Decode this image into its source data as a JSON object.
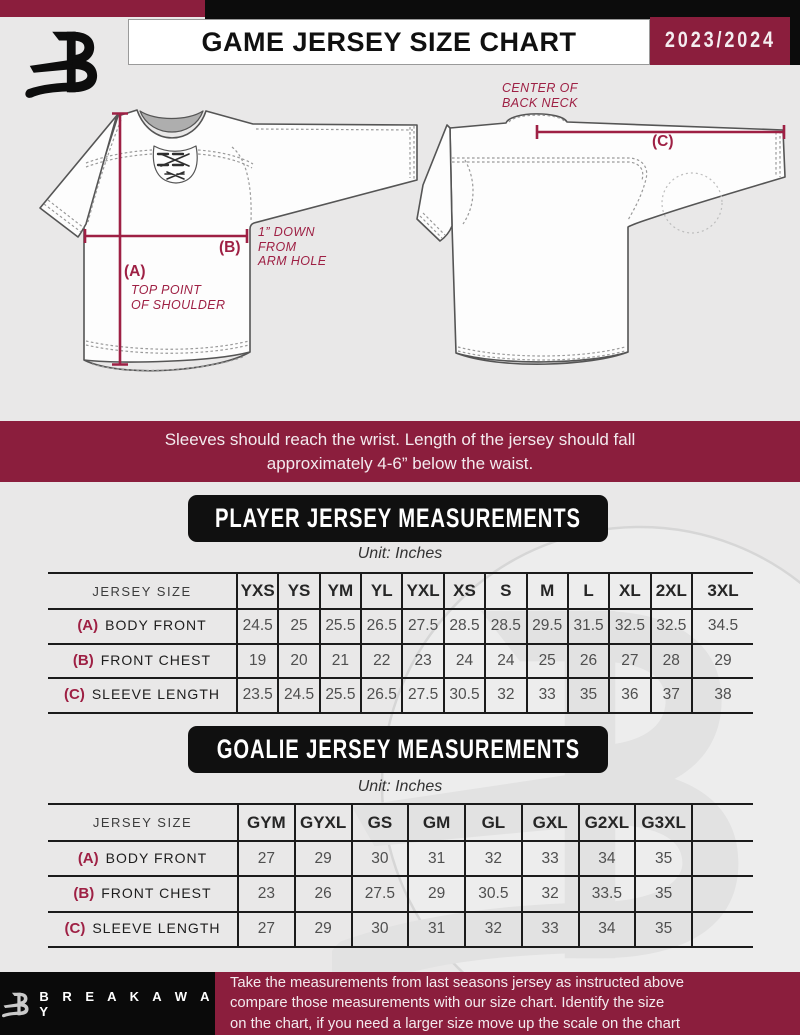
{
  "header": {
    "title": "GAME JERSEY SIZE CHART",
    "season": "2023/2024"
  },
  "diagram": {
    "front": {
      "a_key": "(A)",
      "a_desc": "TOP POINT\nOF SHOULDER",
      "b_key": "(B)",
      "b_desc": "1” DOWN\nFROM\nARM HOLE"
    },
    "back": {
      "c_key": "(C)",
      "c_desc": "CENTER OF\nBACK NECK"
    }
  },
  "banner": {
    "text": "Sleeves should reach the wrist. Length of the jersey should fall\napproximately 4-6” below the waist."
  },
  "player_table": {
    "section_title": "PLAYER JERSEY MEASUREMENTS",
    "unit_label": "Unit: Inches",
    "corner_label": "JERSEY SIZE",
    "trailing_blank": false,
    "sizes": [
      "YXS",
      "YS",
      "YM",
      "YL",
      "YXL",
      "XS",
      "S",
      "M",
      "L",
      "XL",
      "2XL",
      "3XL"
    ],
    "rows": [
      {
        "key": "(A)",
        "name": "BODY FRONT",
        "values": [
          "24.5",
          "25",
          "25.5",
          "26.5",
          "27.5",
          "28.5",
          "28.5",
          "29.5",
          "31.5",
          "32.5",
          "32.5",
          "34.5"
        ]
      },
      {
        "key": "(B)",
        "name": "FRONT CHEST",
        "values": [
          "19",
          "20",
          "21",
          "22",
          "23",
          "24",
          "24",
          "25",
          "26",
          "27",
          "28",
          "29"
        ]
      },
      {
        "key": "(C)",
        "name": "SLEEVE LENGTH",
        "values": [
          "23.5",
          "24.5",
          "25.5",
          "26.5",
          "27.5",
          "30.5",
          "32",
          "33",
          "35",
          "36",
          "37",
          "38"
        ]
      }
    ]
  },
  "goalie_table": {
    "section_title": "GOALIE JERSEY MEASUREMENTS",
    "unit_label": "Unit: Inches",
    "corner_label": "JERSEY SIZE",
    "trailing_blank": true,
    "sizes": [
      "GYM",
      "GYXL",
      "GS",
      "GM",
      "GL",
      "GXL",
      "G2XL",
      "G3XL"
    ],
    "rows": [
      {
        "key": "(A)",
        "name": "BODY FRONT",
        "values": [
          "27",
          "29",
          "30",
          "31",
          "32",
          "33",
          "34",
          "35"
        ]
      },
      {
        "key": "(B)",
        "name": "FRONT CHEST",
        "values": [
          "23",
          "26",
          "27.5",
          "29",
          "30.5",
          "32",
          "33.5",
          "35"
        ]
      },
      {
        "key": "(C)",
        "name": "SLEEVE LENGTH",
        "values": [
          "27",
          "29",
          "30",
          "31",
          "32",
          "33",
          "34",
          "35"
        ]
      }
    ]
  },
  "footer": {
    "brand": "B R E A K A W A Y",
    "note": "Take the measurements from last seasons jersey as instructed above\ncompare those measurements  with our size chart. Identify the size\non the chart, if you need a larger size move up the scale on the chart"
  },
  "colors": {
    "maroon": "#8b1e3d",
    "annotation": "#9e2044",
    "background": "#e9e8e8"
  }
}
